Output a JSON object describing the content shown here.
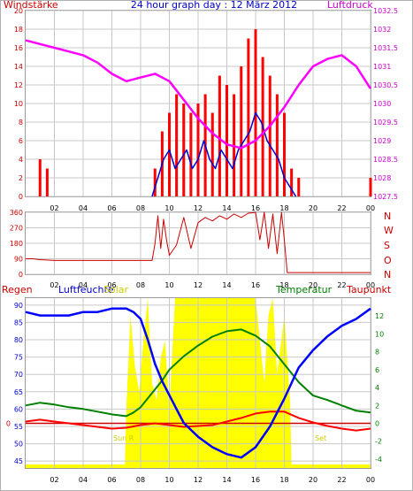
{
  "header": {
    "left_label": "Windstärke",
    "title": "24 hour graph day : 12 März 2012",
    "right_label": "Luftdruck"
  },
  "mid_panel": {
    "right_labels": [
      "N",
      "W",
      "S",
      "O",
      "N"
    ]
  },
  "bottom_header": {
    "regen": "Regen",
    "luftfeuchte": "Luftfeuchte",
    "solar": "Solar",
    "temperatur": "Temperatur",
    "taupunkt": "Taupunkt"
  },
  "solar_annotations": {
    "sunrise": "Sun R",
    "sunset": "Set"
  },
  "colors": {
    "wind": "#ff0000",
    "gust": "#0000cc",
    "pressure": "#ff00ff",
    "direction": "#cc0000",
    "humidity": "#0000ff",
    "solar": "#ffff00",
    "temperature": "#008000",
    "dewpoint": "#ff0000",
    "rain": "#cc0000",
    "title": "#0000cc",
    "left_axis": "#cc0000",
    "right_axis": "#cc00cc",
    "grid": "#c8c8c8"
  },
  "chart_data": [
    {
      "type": "line",
      "title": "24 hour graph day : 12 März 2012",
      "x_ticks": [
        "02",
        "04",
        "06",
        "08",
        "10",
        "12",
        "14",
        "16",
        "18",
        "20",
        "22",
        "00"
      ],
      "xlim": [
        0,
        24
      ],
      "y_left_label": "Windstärke",
      "y_left_ticks": [
        0,
        2,
        4,
        6,
        8,
        10,
        12,
        14,
        16,
        18,
        20
      ],
      "y_left_lim": [
        0,
        20
      ],
      "y_right_label": "Luftdruck",
      "y_right_ticks": [
        1027.5,
        1028,
        1028.5,
        1029,
        1029.5,
        1030,
        1030.5,
        1031,
        1031.5,
        1032,
        1032.5
      ],
      "y_right_lim": [
        1027.5,
        1032.5
      ],
      "series": [
        {
          "name": "Windstärke",
          "axis": "left",
          "x": [
            0.0,
            0.5,
            1.0,
            1.5,
            2.0,
            2.5,
            3.0,
            3.5,
            4.0,
            4.5,
            5.0,
            5.5,
            6.0,
            6.5,
            7.0,
            7.5,
            8.0,
            8.5,
            9.0,
            9.5,
            10.0,
            10.5,
            11.0,
            11.5,
            12.0,
            12.5,
            13.0,
            13.5,
            14.0,
            14.5,
            15.0,
            15.5,
            16.0,
            16.5,
            17.0,
            17.5,
            18.0,
            18.5,
            19.0,
            19.5,
            20.0,
            20.5,
            21.0,
            21.5,
            22.0,
            22.5,
            23.0,
            23.5,
            24.0
          ],
          "values": [
            0,
            0,
            4,
            3,
            0,
            0,
            0,
            0,
            0,
            0,
            0,
            0,
            0,
            0,
            0,
            0,
            0,
            0,
            3,
            7,
            9,
            11,
            10,
            9,
            10,
            11,
            9,
            13,
            12,
            11,
            14,
            17,
            18,
            15,
            13,
            11,
            9,
            3,
            2,
            0,
            0,
            0,
            0,
            0,
            0,
            0,
            0,
            0,
            2
          ]
        },
        {
          "name": "Böen",
          "axis": "left",
          "x": [
            8.8,
            9.2,
            9.6,
            10.0,
            10.4,
            10.8,
            11.2,
            11.6,
            12.0,
            12.4,
            12.8,
            13.2,
            13.6,
            14.0,
            14.4,
            14.8,
            15.2,
            15.6,
            16.0,
            16.4,
            16.8,
            17.2,
            17.6,
            18.0,
            18.4,
            18.8
          ],
          "values": [
            0,
            2,
            4,
            5,
            3,
            4,
            5,
            3,
            4,
            6,
            4,
            3,
            5,
            4,
            3,
            5,
            6,
            7,
            9,
            8,
            6,
            5,
            4,
            2,
            1,
            0
          ]
        },
        {
          "name": "Luftdruck",
          "axis": "right",
          "x": [
            0,
            1,
            2,
            3,
            4,
            5,
            6,
            7,
            8,
            9,
            10,
            11,
            12,
            13,
            14,
            15,
            16,
            17,
            18,
            19,
            20,
            21,
            22,
            23,
            24
          ],
          "values": [
            1031.7,
            1031.6,
            1031.5,
            1031.4,
            1031.3,
            1031.1,
            1030.8,
            1030.6,
            1030.7,
            1030.8,
            1030.6,
            1030.1,
            1029.6,
            1029.2,
            1028.9,
            1028.8,
            1029.0,
            1029.4,
            1029.9,
            1030.5,
            1031.0,
            1031.2,
            1031.3,
            1031.0,
            1030.4
          ]
        }
      ]
    },
    {
      "type": "line",
      "x_ticks": [
        "02",
        "04",
        "06",
        "08",
        "10",
        "12",
        "14",
        "16",
        "18",
        "20",
        "22",
        "00"
      ],
      "xlim": [
        0,
        24
      ],
      "y_left_ticks": [
        0,
        90,
        180,
        270,
        360
      ],
      "y_left_lim": [
        0,
        360
      ],
      "y_right_ticks": [
        "N",
        "W",
        "S",
        "O",
        "N"
      ],
      "series": [
        {
          "name": "Windrichtung",
          "x": [
            0.0,
            0.5,
            1.0,
            2.0,
            3.0,
            4.0,
            5.0,
            6.0,
            7.0,
            8.0,
            8.8,
            9.0,
            9.2,
            9.4,
            9.6,
            9.8,
            10.0,
            10.5,
            11.0,
            11.5,
            12.0,
            12.5,
            13.0,
            13.5,
            14.0,
            14.5,
            15.0,
            15.5,
            16.0,
            16.3,
            16.6,
            16.9,
            17.2,
            17.5,
            17.8,
            18.0,
            18.2,
            19.0,
            20.0,
            21.0,
            22.0,
            23.0,
            24.0
          ],
          "values": [
            90,
            90,
            85,
            80,
            80,
            80,
            80,
            80,
            80,
            80,
            80,
            180,
            340,
            150,
            320,
            200,
            110,
            170,
            330,
            150,
            300,
            330,
            310,
            340,
            320,
            350,
            330,
            355,
            360,
            200,
            360,
            150,
            350,
            120,
            360,
            200,
            10,
            10,
            10,
            10,
            10,
            10,
            10
          ]
        }
      ]
    },
    {
      "type": "line",
      "x_ticks": [
        "02",
        "04",
        "06",
        "08",
        "10",
        "12",
        "14",
        "16",
        "18",
        "20",
        "22",
        "00"
      ],
      "xlim": [
        0,
        24
      ],
      "y_left_label": "Luftfeuchte",
      "y_left_ticks": [
        45,
        50,
        55,
        60,
        65,
        70,
        75,
        80,
        85,
        90
      ],
      "y_left_lim": [
        43,
        92
      ],
      "y_right_label": "Temperatur",
      "y_right_ticks": [
        -4,
        -2,
        0,
        2,
        4,
        6,
        8,
        10,
        12
      ],
      "y_right_lim": [
        -5,
        14
      ],
      "rain_label": "Regen",
      "rain_tick": 0,
      "solar_label": "Solar",
      "series": [
        {
          "name": "Luftfeuchte",
          "axis": "left",
          "x": [
            0,
            1,
            2,
            3,
            4,
            5,
            6,
            7,
            7.5,
            8,
            8.5,
            9,
            9.5,
            10,
            10.5,
            11,
            12,
            13,
            14,
            15,
            16,
            17,
            18,
            19,
            20,
            21,
            22,
            23,
            24
          ],
          "values": [
            88,
            87,
            87,
            87,
            88,
            88,
            89,
            89,
            88,
            86,
            80,
            73,
            68,
            64,
            60,
            56,
            52,
            49,
            47,
            46,
            49,
            55,
            63,
            72,
            77,
            81,
            84,
            86,
            89
          ]
        },
        {
          "name": "Temperatur",
          "axis": "right",
          "x": [
            0,
            1,
            2,
            3,
            4,
            5,
            6,
            7,
            7.5,
            8,
            8.5,
            9,
            9.5,
            10,
            11,
            12,
            13,
            14,
            15,
            16,
            17,
            18,
            19,
            20,
            21,
            22,
            23,
            24
          ],
          "values": [
            2.0,
            2.3,
            2.1,
            1.8,
            1.6,
            1.3,
            1.0,
            0.8,
            1.2,
            1.8,
            2.8,
            3.8,
            4.8,
            6.0,
            7.5,
            8.7,
            9.7,
            10.3,
            10.5,
            9.8,
            8.6,
            6.6,
            4.6,
            3.1,
            2.6,
            2.0,
            1.4,
            1.2
          ]
        },
        {
          "name": "Taupunkt",
          "axis": "right",
          "x": [
            0,
            1,
            2,
            3,
            4,
            5,
            6,
            7,
            8,
            9,
            10,
            11,
            12,
            13,
            14,
            15,
            16,
            17,
            18,
            19,
            20,
            21,
            22,
            23,
            24
          ],
          "values": [
            0.2,
            0.4,
            0.2,
            0.0,
            -0.2,
            -0.4,
            -0.6,
            -0.5,
            -0.2,
            0.0,
            -0.2,
            -0.4,
            -0.3,
            -0.2,
            0.2,
            0.6,
            1.1,
            1.3,
            1.3,
            0.6,
            0.1,
            -0.3,
            -0.6,
            -0.8,
            -0.6
          ]
        },
        {
          "name": "Solar",
          "axis": "fill",
          "x": [
            0,
            6.9,
            7.0,
            7.3,
            7.6,
            7.9,
            8.2,
            8.5,
            8.8,
            9.1,
            9.4,
            9.7,
            10.0,
            10.4,
            10.8,
            11.2,
            12,
            13,
            14,
            15,
            16,
            16.6,
            16.9,
            17.2,
            17.5,
            18.0,
            18.4,
            18.5,
            24
          ],
          "values": [
            0,
            0,
            0.35,
            0.9,
            0.6,
            0.45,
            0.75,
            1.0,
            0.5,
            0.4,
            0.65,
            0.75,
            0.35,
            1.0,
            1.0,
            1.0,
            1.0,
            1.0,
            1.0,
            1.0,
            1.0,
            0.5,
            0.9,
            1.0,
            0.55,
            0.9,
            0.4,
            0,
            0
          ]
        }
      ]
    }
  ]
}
